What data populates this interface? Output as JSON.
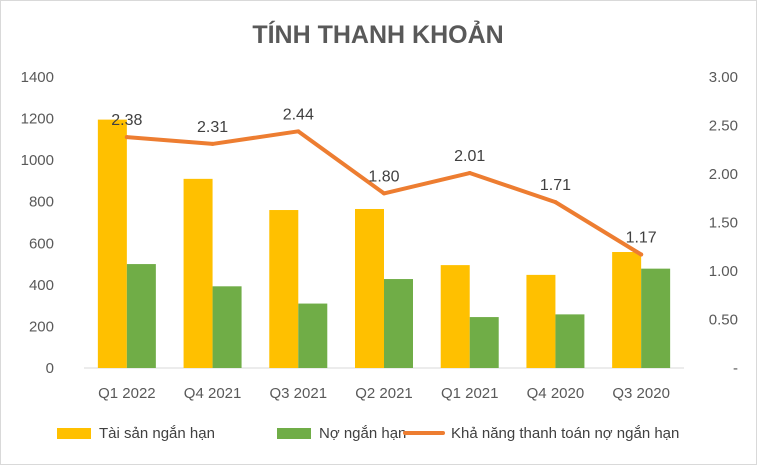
{
  "chart_data": {
    "type": "bar",
    "title": "TÍNH THANH KHOẢN",
    "categories": [
      "Q1 2022",
      "Q4 2021",
      "Q3 2021",
      "Q2 2021",
      "Q1 2021",
      "Q4 2020",
      "Q3 2020"
    ],
    "series": [
      {
        "name": "Tài sản ngắn hạn",
        "kind": "bar",
        "axis": "left",
        "color": "#FFC000",
        "values": [
          1195,
          910,
          760,
          765,
          495,
          448,
          558
        ]
      },
      {
        "name": "Nợ ngắn hạn",
        "kind": "bar",
        "axis": "left",
        "color": "#70AD47",
        "values": [
          500,
          393,
          310,
          428,
          245,
          258,
          478
        ]
      },
      {
        "name": "Khả năng thanh toán nợ ngắn hạn",
        "kind": "line",
        "axis": "right",
        "color": "#ED7D31",
        "values": [
          2.38,
          2.31,
          2.44,
          1.8,
          2.01,
          1.71,
          1.17
        ],
        "labels": [
          "2.38",
          "2.31",
          "2.44",
          "1.80",
          "2.01",
          "1.71",
          "1.17"
        ]
      }
    ],
    "y_left": {
      "min": 0,
      "max": 1400,
      "ticks": [
        0,
        200,
        400,
        600,
        800,
        1000,
        1200,
        1400
      ],
      "tick_labels": [
        "0",
        "200",
        "400",
        "600",
        "800",
        "1000",
        "1200",
        "1400"
      ]
    },
    "y_right": {
      "min": 0,
      "max": 3,
      "ticks": [
        0,
        0.5,
        1,
        1.5,
        2,
        2.5,
        3
      ],
      "tick_labels": [
        "-",
        "0.50",
        "1.00",
        "1.50",
        "2.00",
        "2.50",
        "3.00"
      ]
    },
    "grid": false,
    "legend_position": "bottom"
  }
}
